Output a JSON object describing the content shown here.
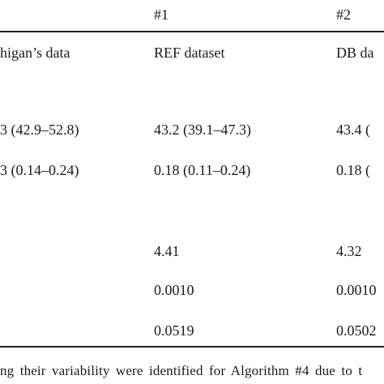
{
  "table": {
    "header": [
      "#1",
      "#2"
    ],
    "rows": [
      {
        "left": "higan’s data",
        "ref": "REF dataset",
        "db": "DB da"
      },
      {
        "left": "3 (42.9–52.8)",
        "ref": "43.2 (39.1–47.3)",
        "db": "43.4 ("
      },
      {
        "left": "3 (0.14–0.24)",
        "ref": "0.18 (0.11–0.24)",
        "db": "0.18 ("
      },
      {
        "ref": "4.41",
        "db": "4.32"
      },
      {
        "ref": "0.0010",
        "db": "0.0010"
      },
      {
        "ref": "0.0519",
        "db": "0.0502"
      }
    ]
  },
  "footnote": "ng their variability were identified for Algorithm #4 due to t"
}
